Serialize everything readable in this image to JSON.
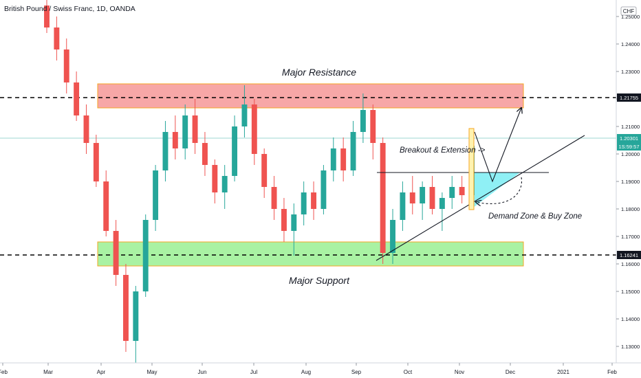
{
  "header": {
    "symbol_title": "British Pound / Swiss Franc, 1D, OANDA",
    "currency_badge": "CHF"
  },
  "price_scale": {
    "ticks": [
      "1.25000",
      "1.24000",
      "1.23000",
      "1.22000",
      "1.21000",
      "1.20000",
      "1.19000",
      "1.18000",
      "1.17000",
      "1.16000",
      "1.15000",
      "1.14000",
      "1.13000"
    ],
    "labels": [
      {
        "value": "1.21755",
        "style": "dark"
      },
      {
        "value": "1.20301",
        "style": "teal"
      },
      {
        "value": "1S:59:57",
        "style": "teal"
      },
      {
        "value": "1.16241",
        "style": "dark"
      }
    ]
  },
  "time_scale": {
    "labels": [
      "Feb",
      "Mar",
      "Apr",
      "May",
      "Jun",
      "Jul",
      "Aug",
      "Sep",
      "Oct",
      "Nov",
      "Dec",
      "2021",
      "Feb"
    ]
  },
  "annotations": {
    "major_resistance": "Major Resistance",
    "major_support": "Major Support",
    "breakout": "Breakout & Extension ->",
    "demand_zone": "Demand Zone & Buy Zone"
  },
  "colors": {
    "up": "#26a69a",
    "down": "#ef5350",
    "resistance_zone": "#f7a7a7",
    "support_zone": "#a9f2a3",
    "zone_border": "#f5a623",
    "demand_zone": "#8ff0f5",
    "current_price": "#26a69a"
  },
  "chart_data": {
    "type": "candlestick",
    "symbol": "GBP/CHF",
    "interval": "1D",
    "y_range": [
      1.124,
      1.256
    ],
    "levels": {
      "resistance": 1.21755,
      "support": 1.16241,
      "last_price": 1.20301
    },
    "zones": {
      "major_resistance": [
        1.2135,
        1.222
      ],
      "major_support": [
        1.1585,
        1.1668
      ]
    },
    "x_labels": [
      "Feb",
      "Mar",
      "Apr",
      "May",
      "Jun",
      "Jul",
      "Aug",
      "Sep",
      "Oct",
      "Nov",
      "Dec",
      "2021",
      "Feb"
    ],
    "candles": [
      [
        "Mar",
        1.254,
        1.256,
        1.244,
        1.246
      ],
      [
        "Mar",
        1.246,
        1.25,
        1.234,
        1.238
      ],
      [
        "Mar",
        1.238,
        1.242,
        1.222,
        1.226
      ],
      [
        "Mar",
        1.226,
        1.23,
        1.212,
        1.214
      ],
      [
        "Mar",
        1.214,
        1.218,
        1.2,
        1.204
      ],
      [
        "Mar",
        1.204,
        1.207,
        1.188,
        1.19
      ],
      [
        "Mar",
        1.19,
        1.194,
        1.17,
        1.172
      ],
      [
        "Mar",
        1.172,
        1.176,
        1.152,
        1.156
      ],
      [
        "Mar",
        1.156,
        1.16,
        1.128,
        1.132
      ],
      [
        "Mar",
        1.132,
        1.152,
        1.124,
        1.15
      ],
      [
        "Apr",
        1.15,
        1.178,
        1.148,
        1.176
      ],
      [
        "Apr",
        1.176,
        1.196,
        1.172,
        1.194
      ],
      [
        "Apr",
        1.194,
        1.212,
        1.19,
        1.208
      ],
      [
        "Apr",
        1.208,
        1.214,
        1.198,
        1.202
      ],
      [
        "May",
        1.202,
        1.218,
        1.198,
        1.214
      ],
      [
        "May",
        1.214,
        1.22,
        1.2,
        1.204
      ],
      [
        "May",
        1.204,
        1.208,
        1.192,
        1.196
      ],
      [
        "May",
        1.196,
        1.198,
        1.182,
        1.186
      ],
      [
        "May",
        1.186,
        1.196,
        1.18,
        1.192
      ],
      [
        "Jun",
        1.192,
        1.214,
        1.19,
        1.21
      ],
      [
        "Jun",
        1.21,
        1.225,
        1.206,
        1.218
      ],
      [
        "Jun",
        1.218,
        1.22,
        1.196,
        1.2
      ],
      [
        "Jun",
        1.2,
        1.202,
        1.184,
        1.188
      ],
      [
        "Jun",
        1.188,
        1.192,
        1.176,
        1.18
      ],
      [
        "Jul",
        1.18,
        1.184,
        1.168,
        1.172
      ],
      [
        "Jul",
        1.172,
        1.182,
        1.163,
        1.178
      ],
      [
        "Jul",
        1.178,
        1.19,
        1.174,
        1.186
      ],
      [
        "Jul",
        1.186,
        1.19,
        1.176,
        1.18
      ],
      [
        "Aug",
        1.18,
        1.196,
        1.178,
        1.194
      ],
      [
        "Aug",
        1.194,
        1.206,
        1.19,
        1.202
      ],
      [
        "Aug",
        1.202,
        1.206,
        1.19,
        1.194
      ],
      [
        "Aug",
        1.194,
        1.212,
        1.192,
        1.208
      ],
      [
        "Sep",
        1.208,
        1.222,
        1.204,
        1.216
      ],
      [
        "Sep",
        1.216,
        1.218,
        1.198,
        1.204
      ],
      [
        "Sep",
        1.204,
        1.206,
        1.16,
        1.164
      ],
      [
        "Sep",
        1.164,
        1.18,
        1.16,
        1.176
      ],
      [
        "Sep",
        1.176,
        1.19,
        1.172,
        1.186
      ],
      [
        "Oct",
        1.186,
        1.192,
        1.178,
        1.182
      ],
      [
        "Oct",
        1.182,
        1.19,
        1.176,
        1.188
      ],
      [
        "Oct",
        1.188,
        1.192,
        1.178,
        1.18
      ],
      [
        "Oct",
        1.18,
        1.186,
        1.172,
        1.184
      ],
      [
        "Nov",
        1.184,
        1.192,
        1.18,
        1.188
      ],
      [
        "Nov",
        1.188,
        1.192,
        1.182,
        1.185
      ],
      [
        "Nov",
        1.185,
        1.205,
        1.181,
        1.203
      ]
    ]
  }
}
